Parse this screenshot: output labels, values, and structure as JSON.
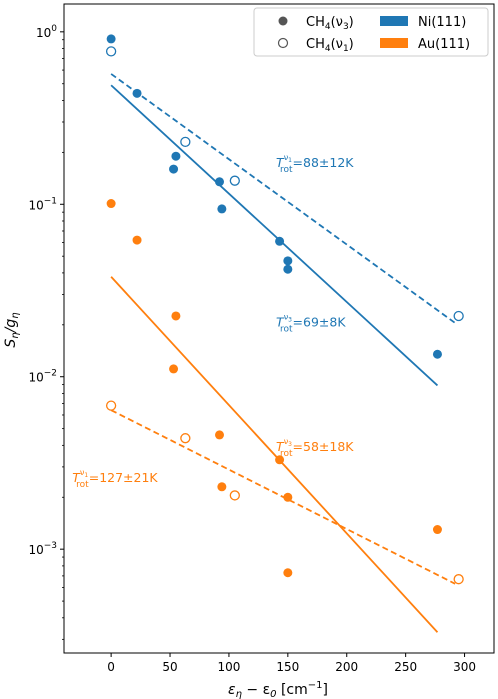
{
  "chart_data": {
    "type": "scatter",
    "title": "",
    "xlabel": {
      "main": "ε",
      "sub1": "η",
      "mid": " − ε",
      "sub2": "0",
      "unit_pre": " [cm",
      "unit_sup": "−1",
      "unit_post": "]"
    },
    "ylabel": {
      "main": "S",
      "sub1": "η",
      "mid": "/g",
      "sub2": "η"
    },
    "xlim": [
      -40,
      325
    ],
    "ylim": [
      0.00025,
      1.45
    ],
    "yscale": "log",
    "grid": false,
    "legend_position": "top-right",
    "x_ticks": [
      0,
      50,
      100,
      150,
      200,
      250,
      300
    ],
    "x_tick_labels": [
      "0",
      "50",
      "100",
      "150",
      "200",
      "250",
      "300"
    ],
    "y_ticks": [
      {
        "value": 1,
        "base": "10",
        "exp": "0"
      },
      {
        "value": 0.1,
        "base": "10",
        "exp": "−1"
      },
      {
        "value": 0.01,
        "base": "10",
        "exp": "−2"
      },
      {
        "value": 0.001,
        "base": "10",
        "exp": "−3"
      }
    ],
    "legend": {
      "filled": {
        "prefix": "CH",
        "sub": "4",
        "suffix": "(ν",
        "sub2": "3",
        "end": ")"
      },
      "open": {
        "prefix": "CH",
        "sub": "4",
        "suffix": "(ν",
        "sub2": "1",
        "end": ")"
      },
      "ni": "Ni(111)",
      "au": "Au(111)"
    },
    "colors": {
      "ni": "#1f77b4",
      "au": "#ff7f0e"
    },
    "series": [
      {
        "name": "Ni(111) CH4(ν3)",
        "color": "#1f77b4",
        "marker": "filled",
        "points": [
          [
            0,
            0.91
          ],
          [
            22,
            0.44
          ],
          [
            53,
            0.16
          ],
          [
            55,
            0.19
          ],
          [
            92,
            0.135
          ],
          [
            94,
            0.094
          ],
          [
            143,
            0.061
          ],
          [
            150,
            0.047
          ],
          [
            150,
            0.042
          ],
          [
            277,
            0.0135
          ]
        ]
      },
      {
        "name": "Ni(111) CH4(ν1)",
        "color": "#1f77b4",
        "marker": "open",
        "points": [
          [
            0,
            0.77
          ],
          [
            63,
            0.23
          ],
          [
            105,
            0.137
          ],
          [
            295,
            0.0225
          ]
        ]
      },
      {
        "name": "Au(111) CH4(ν3)",
        "color": "#ff7f0e",
        "marker": "filled",
        "points": [
          [
            0,
            0.101
          ],
          [
            22,
            0.062
          ],
          [
            53,
            0.0111
          ],
          [
            55,
            0.0225
          ],
          [
            92,
            0.0046
          ],
          [
            94,
            0.0023
          ],
          [
            143,
            0.0033
          ],
          [
            150,
            0.002
          ],
          [
            150,
            0.00073
          ],
          [
            277,
            0.0013
          ]
        ]
      },
      {
        "name": "Au(111) CH4(ν1)",
        "color": "#ff7f0e",
        "marker": "open",
        "points": [
          [
            0,
            0.0068
          ],
          [
            63,
            0.0044
          ],
          [
            105,
            0.00205
          ],
          [
            295,
            0.00067
          ]
        ]
      }
    ],
    "fits": [
      {
        "series": "Ni(111) CH4(ν3)",
        "color": "#1f77b4",
        "dash": false,
        "x": [
          0,
          277
        ],
        "y": [
          0.49,
          0.0089
        ]
      },
      {
        "series": "Ni(111) CH4(ν1)",
        "color": "#1f77b4",
        "dash": true,
        "x": [
          0,
          292
        ],
        "y": [
          0.57,
          0.0205
        ]
      },
      {
        "series": "Au(111) CH4(ν3)",
        "color": "#ff7f0e",
        "dash": false,
        "x": [
          0,
          277
        ],
        "y": [
          0.038,
          0.00033
        ]
      },
      {
        "series": "Au(111) CH4(ν1)",
        "color": "#ff7f0e",
        "dash": true,
        "x": [
          0,
          292
        ],
        "y": [
          0.0064,
          0.00063
        ]
      }
    ],
    "annotations": [
      {
        "x": 140,
        "y": 0.165,
        "color": "#1f77b4",
        "sup": "ν",
        "supsub": "1",
        "value": "=88±12K"
      },
      {
        "x": 140,
        "y": 0.0195,
        "color": "#1f77b4",
        "sup": "ν",
        "supsub": "3",
        "value": "=69±8K"
      },
      {
        "x": 140,
        "y": 0.0037,
        "color": "#ff7f0e",
        "sup": "ν",
        "supsub": "3",
        "value": "=58±18K"
      },
      {
        "x": -33,
        "y": 0.00245,
        "color": "#ff7f0e",
        "sup": "ν",
        "supsub": "1",
        "value": "=127±21K"
      }
    ],
    "annotation_symbol": {
      "main": "T",
      "sub": "rot"
    }
  }
}
